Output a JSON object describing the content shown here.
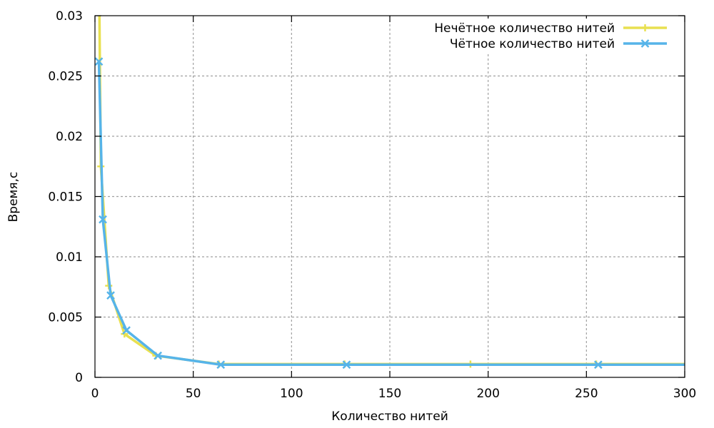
{
  "chart_data": {
    "type": "line",
    "title": "",
    "xlabel": "Количество нитей",
    "ylabel": "Время,с",
    "xlim": [
      0,
      300
    ],
    "ylim": [
      0,
      0.03
    ],
    "x_ticks": [
      "0",
      "50",
      "100",
      "150",
      "200",
      "250",
      "300"
    ],
    "y_ticks": [
      "0",
      "0.005",
      "0.01",
      "0.015",
      "0.02",
      "0.025",
      "0.03"
    ],
    "grid": true,
    "legend_position": "top-right",
    "series": [
      {
        "name": "Нечётное количество нитей",
        "color": "#e8e050",
        "marker": "plus",
        "x": [
          1,
          3,
          7,
          15,
          31,
          63,
          127,
          191,
          255,
          300
        ],
        "y": [
          0.052,
          0.0175,
          0.0076,
          0.0036,
          0.0018,
          0.0011,
          0.0011,
          0.0011,
          0.0011,
          0.0011
        ]
      },
      {
        "name": "Чётное количество нитей",
        "color": "#56b4e9",
        "marker": "x",
        "x": [
          2,
          4,
          8,
          16,
          32,
          64,
          128,
          256,
          300
        ],
        "y": [
          0.0262,
          0.0131,
          0.0068,
          0.0039,
          0.0018,
          0.00105,
          0.00105,
          0.00105,
          0.00105
        ]
      }
    ]
  }
}
